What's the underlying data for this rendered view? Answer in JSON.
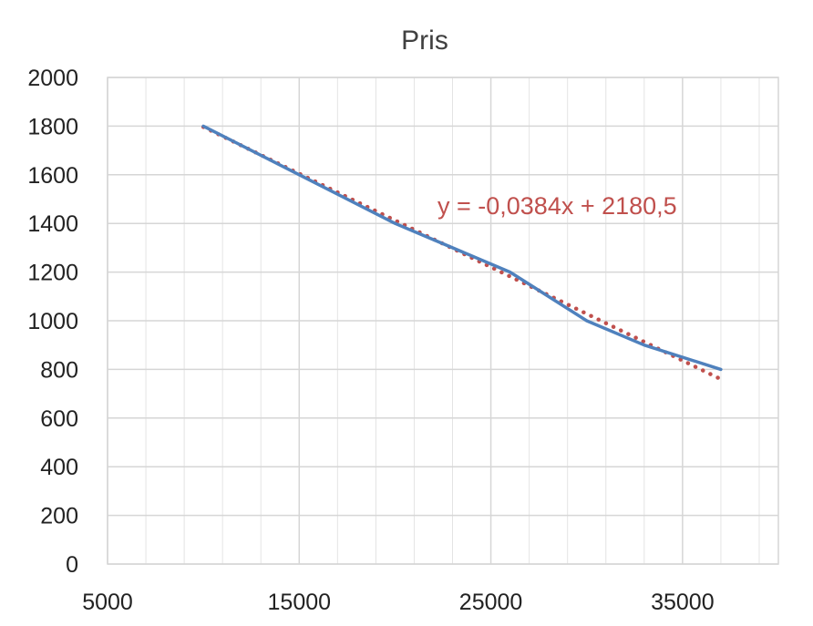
{
  "chart_data": {
    "type": "line",
    "title": "Pris",
    "xlabel": "",
    "ylabel": "",
    "xlim": [
      5000,
      40000
    ],
    "ylim": [
      0,
      2000
    ],
    "x_major_ticks": [
      5000,
      15000,
      25000,
      35000
    ],
    "x_tick_labels": [
      "5000",
      "15000",
      "25000",
      "35000"
    ],
    "x_minor_step": 2000,
    "y_ticks": [
      0,
      200,
      400,
      600,
      800,
      1000,
      1200,
      1400,
      1600,
      1800,
      2000
    ],
    "y_tick_labels": [
      "0",
      "200",
      "400",
      "600",
      "800",
      "1000",
      "1200",
      "1400",
      "1600",
      "1800",
      "2000"
    ],
    "grid": true,
    "legend": "none",
    "series": [
      {
        "x": [
          10000,
          15000,
          20000,
          26000,
          30000,
          33000,
          37000
        ],
        "y": [
          1800,
          1600,
          1400,
          1200,
          1000,
          900,
          800
        ],
        "color": "#4f81bd"
      }
    ],
    "trendline": {
      "kind": "linear",
      "slope": -0.0384,
      "intercept": 2180.5,
      "x_range": [
        10000,
        37000
      ],
      "color": "#c0504d",
      "equation_label": "y = -0,0384x + 2180,5"
    }
  }
}
